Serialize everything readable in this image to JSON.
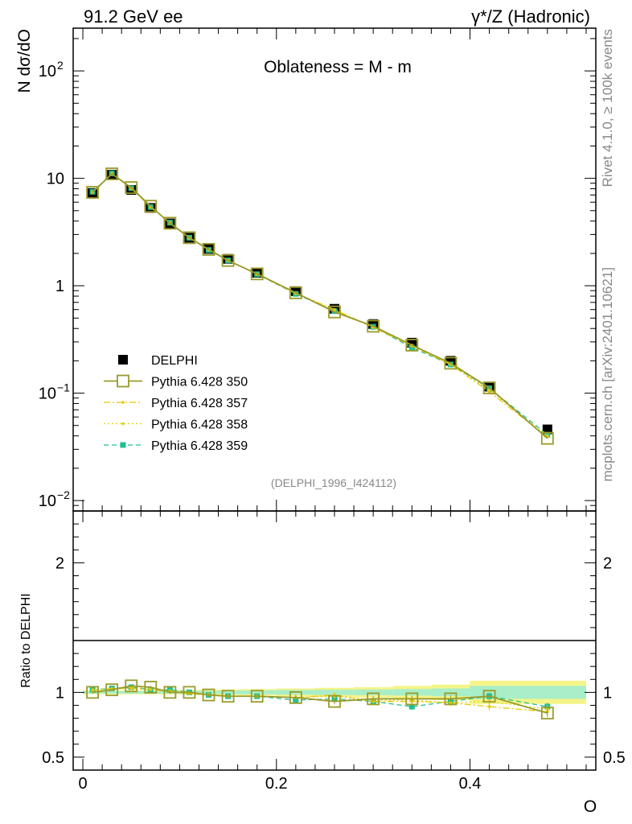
{
  "header": {
    "left": "91.2 GeV ee",
    "right": "γ*/Z (Hadronic)"
  },
  "side_labels": {
    "top": "Rivet 4.1.0, ≥ 100k events",
    "bottom": "mcplots.cern.ch [arXiv:2401.10621]"
  },
  "chart_data": [
    {
      "panel": "main",
      "type": "line",
      "title": "Oblateness = M - m",
      "ylabel": "N  dσ/dO",
      "xlabel": "O",
      "yscale": "log",
      "ylim": [
        0.008,
        250
      ],
      "xlim": [
        -0.01,
        0.53
      ],
      "yticks": [
        {
          "value": 0.01,
          "base": "10",
          "exp": "−2"
        },
        {
          "value": 0.1,
          "base": "10",
          "exp": "−1"
        },
        {
          "value": 1,
          "base": "1",
          "exp": ""
        },
        {
          "value": 10,
          "base": "10",
          "exp": ""
        },
        {
          "value": 100,
          "base": "10",
          "exp": "2"
        }
      ],
      "xticks": [
        0,
        0.2,
        0.4
      ],
      "xtick_labels": [
        "0",
        "0.2",
        "0.4"
      ],
      "watermark": "(DELPHI_1996_I424112)",
      "x": [
        0.01,
        0.03,
        0.05,
        0.07,
        0.09,
        0.11,
        0.13,
        0.15,
        0.18,
        0.22,
        0.26,
        0.3,
        0.34,
        0.38,
        0.42,
        0.48
      ],
      "series": [
        {
          "name": "DELPHI",
          "style": "data",
          "color": "#000000",
          "values": [
            7.3,
            10.8,
            7.8,
            5.3,
            3.8,
            2.8,
            2.2,
            1.78,
            1.32,
            0.89,
            0.61,
            0.44,
            0.295,
            0.2,
            0.115,
            0.046
          ]
        },
        {
          "name": "Pythia 6.428 350",
          "style": "open-square-solid",
          "color": "#9a9a2a",
          "values": [
            7.4,
            11.0,
            8.2,
            5.5,
            3.82,
            2.8,
            2.18,
            1.72,
            1.29,
            0.86,
            0.57,
            0.42,
            0.28,
            0.19,
            0.112,
            0.038
          ]
        },
        {
          "name": "Pythia 6.428 357",
          "style": "dashdot",
          "color": "#e8c800",
          "values": [
            7.45,
            11.05,
            8.05,
            5.4,
            3.85,
            2.78,
            2.16,
            1.71,
            1.28,
            0.85,
            0.6,
            0.41,
            0.275,
            0.185,
            0.103,
            0.039
          ]
        },
        {
          "name": "Pythia 6.428 358",
          "style": "dotted",
          "color": "#e0d020",
          "values": [
            7.4,
            11.0,
            8.1,
            5.45,
            3.83,
            2.8,
            2.17,
            1.72,
            1.29,
            0.85,
            0.59,
            0.41,
            0.28,
            0.185,
            0.107,
            0.04
          ]
        },
        {
          "name": "Pythia 6.428 359",
          "style": "dashed-filled",
          "color": "#20c090",
          "values": [
            7.5,
            11.1,
            8.1,
            5.4,
            3.87,
            2.8,
            2.15,
            1.72,
            1.28,
            0.84,
            0.58,
            0.415,
            0.265,
            0.185,
            0.111,
            0.041
          ]
        }
      ]
    },
    {
      "panel": "ratio",
      "type": "line",
      "ylabel": "Ratio to DELPHI",
      "ylim": [
        0.4,
        2.4
      ],
      "yticks": [
        0.5,
        1,
        2
      ],
      "ytick_labels": [
        "0.5",
        "1",
        "2"
      ],
      "x": [
        0.01,
        0.03,
        0.05,
        0.07,
        0.09,
        0.11,
        0.13,
        0.15,
        0.18,
        0.22,
        0.26,
        0.3,
        0.34,
        0.38,
        0.42,
        0.48
      ],
      "band_edges": [
        0,
        0.02,
        0.04,
        0.06,
        0.08,
        0.1,
        0.12,
        0.14,
        0.16,
        0.2,
        0.24,
        0.28,
        0.32,
        0.36,
        0.4,
        0.44,
        0.52
      ],
      "band_inner": [
        0.01,
        0.01,
        0.01,
        0.01,
        0.01,
        0.012,
        0.012,
        0.013,
        0.015,
        0.018,
        0.02,
        0.022,
        0.025,
        0.03,
        0.05,
        0.05
      ],
      "band_outer": [
        0.015,
        0.015,
        0.015,
        0.015,
        0.016,
        0.018,
        0.02,
        0.022,
        0.025,
        0.03,
        0.035,
        0.04,
        0.05,
        0.06,
        0.09,
        0.09
      ],
      "series": [
        {
          "name": "Pythia 6.428 350",
          "values": [
            1.0,
            1.02,
            1.05,
            1.04,
            1.0,
            1.0,
            0.98,
            0.97,
            0.97,
            0.96,
            0.93,
            0.95,
            0.95,
            0.95,
            0.97,
            0.84
          ]
        },
        {
          "name": "Pythia 6.428 357",
          "values": [
            1.02,
            1.03,
            1.03,
            1.02,
            1.01,
            0.99,
            0.98,
            0.97,
            0.97,
            0.96,
            0.98,
            0.93,
            0.93,
            0.92,
            0.89,
            0.85
          ]
        },
        {
          "name": "Pythia 6.428 358",
          "values": [
            1.01,
            1.02,
            1.04,
            1.03,
            1.01,
            1.0,
            0.985,
            0.97,
            0.97,
            0.96,
            0.97,
            0.94,
            0.94,
            0.92,
            0.93,
            0.87
          ]
        },
        {
          "name": "Pythia 6.428 359",
          "values": [
            1.02,
            1.03,
            1.04,
            1.02,
            1.02,
            1.0,
            0.98,
            0.97,
            0.97,
            0.94,
            0.95,
            0.93,
            0.89,
            0.93,
            0.97,
            0.89
          ]
        }
      ]
    }
  ]
}
